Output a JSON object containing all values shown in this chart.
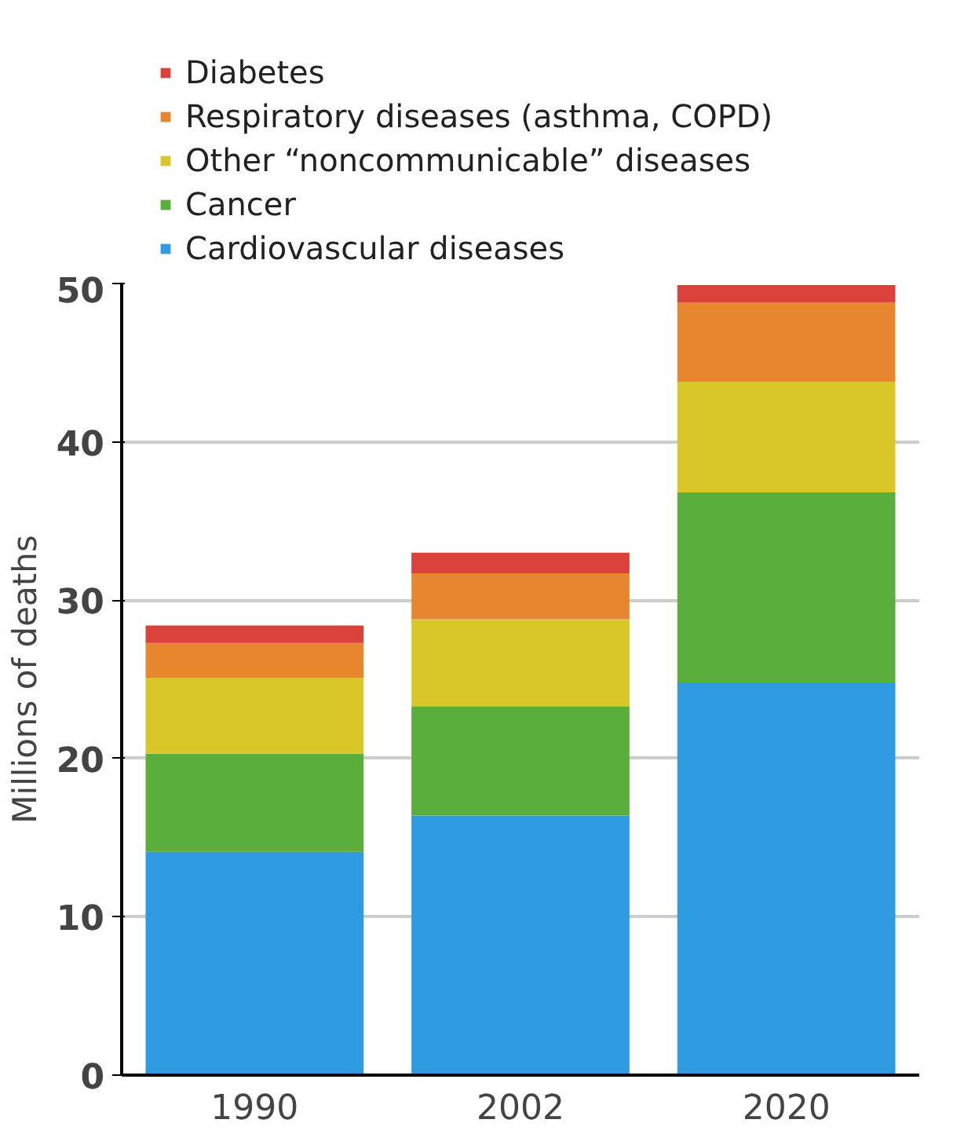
{
  "chart_data": {
    "type": "bar",
    "stacked": true,
    "ylabel": "Millions of deaths",
    "categories": [
      "1990",
      "2002",
      "2020"
    ],
    "series": [
      {
        "name": "Cardiovascular diseases",
        "color": "#2e9be0",
        "values": [
          14.1,
          16.4,
          24.8
        ]
      },
      {
        "name": "Cancer",
        "color": "#5aae3c",
        "values": [
          6.2,
          6.9,
          12.0
        ]
      },
      {
        "name": "Other “noncommunicable” diseases",
        "color": "#d9c72a",
        "values": [
          4.8,
          5.5,
          7.0
        ]
      },
      {
        "name": "Respiratory diseases (asthma, COPD)",
        "color": "#e8862e",
        "values": [
          2.2,
          2.9,
          5.0
        ]
      },
      {
        "name": "Diabetes",
        "color": "#d9413a",
        "values": [
          1.1,
          1.3,
          1.1
        ]
      }
    ],
    "ylim": [
      0,
      50
    ],
    "yticks": [
      0,
      10,
      20,
      30,
      40,
      50
    ],
    "grid": "y",
    "legend": "top left"
  }
}
